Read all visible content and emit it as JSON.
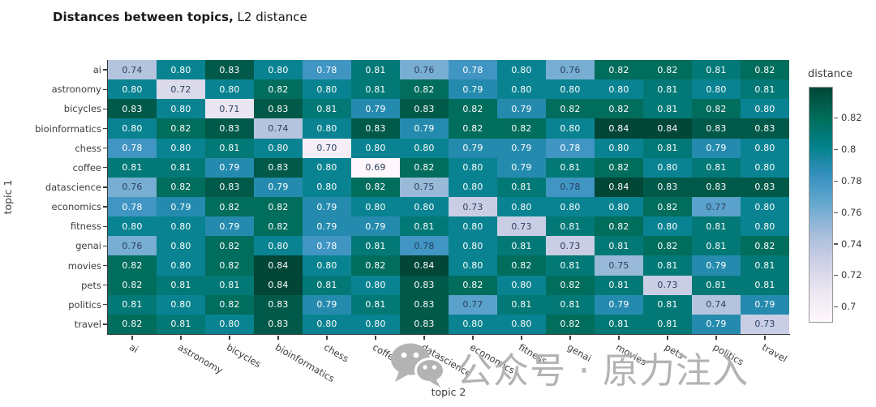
{
  "header": {
    "title_bold": "Distances between topics,",
    "title_regular": " L2 distance"
  },
  "axes": {
    "x_title": "topic 2",
    "y_title": "topic 1"
  },
  "chart_data": {
    "type": "heatmap",
    "title": "Distances between topics, L2 distance",
    "xlabel": "topic 2",
    "ylabel": "topic 1",
    "categories": [
      "ai",
      "astronomy",
      "bicycles",
      "bioinformatics",
      "chess",
      "coffee",
      "datascience",
      "economics",
      "fitness",
      "genai",
      "movies",
      "pets",
      "politics",
      "travel"
    ],
    "matrix": [
      [
        0.74,
        0.8,
        0.83,
        0.8,
        0.78,
        0.81,
        0.76,
        0.78,
        0.8,
        0.76,
        0.82,
        0.82,
        0.81,
        0.82
      ],
      [
        0.8,
        0.72,
        0.8,
        0.82,
        0.8,
        0.81,
        0.82,
        0.79,
        0.8,
        0.8,
        0.8,
        0.81,
        0.8,
        0.81
      ],
      [
        0.83,
        0.8,
        0.71,
        0.83,
        0.81,
        0.79,
        0.83,
        0.82,
        0.79,
        0.82,
        0.82,
        0.81,
        0.82,
        0.8
      ],
      [
        0.8,
        0.82,
        0.83,
        0.74,
        0.8,
        0.83,
        0.79,
        0.82,
        0.82,
        0.8,
        0.84,
        0.84,
        0.83,
        0.83
      ],
      [
        0.78,
        0.8,
        0.81,
        0.8,
        0.7,
        0.8,
        0.8,
        0.79,
        0.79,
        0.78,
        0.8,
        0.81,
        0.79,
        0.8
      ],
      [
        0.81,
        0.81,
        0.79,
        0.83,
        0.8,
        0.69,
        0.82,
        0.8,
        0.79,
        0.81,
        0.82,
        0.8,
        0.81,
        0.8
      ],
      [
        0.76,
        0.82,
        0.83,
        0.79,
        0.8,
        0.82,
        0.75,
        0.8,
        0.81,
        0.78,
        0.84,
        0.83,
        0.83,
        0.83
      ],
      [
        0.78,
        0.79,
        0.82,
        0.82,
        0.79,
        0.8,
        0.8,
        0.73,
        0.8,
        0.8,
        0.8,
        0.82,
        0.77,
        0.8
      ],
      [
        0.8,
        0.8,
        0.79,
        0.82,
        0.79,
        0.79,
        0.81,
        0.8,
        0.73,
        0.81,
        0.82,
        0.8,
        0.81,
        0.8
      ],
      [
        0.76,
        0.8,
        0.82,
        0.8,
        0.78,
        0.81,
        0.78,
        0.8,
        0.81,
        0.73,
        0.81,
        0.82,
        0.81,
        0.82
      ],
      [
        0.82,
        0.8,
        0.82,
        0.84,
        0.8,
        0.82,
        0.84,
        0.8,
        0.82,
        0.81,
        0.75,
        0.81,
        0.79,
        0.81
      ],
      [
        0.82,
        0.81,
        0.81,
        0.84,
        0.81,
        0.8,
        0.83,
        0.82,
        0.8,
        0.82,
        0.81,
        0.73,
        0.81,
        0.81
      ],
      [
        0.81,
        0.8,
        0.82,
        0.83,
        0.79,
        0.81,
        0.83,
        0.77,
        0.81,
        0.81,
        0.79,
        0.81,
        0.74,
        0.79
      ],
      [
        0.82,
        0.81,
        0.8,
        0.83,
        0.8,
        0.8,
        0.83,
        0.8,
        0.8,
        0.82,
        0.81,
        0.81,
        0.79,
        0.73
      ]
    ],
    "value_decimals": 2,
    "colorscale": {
      "name": "PuBuGn",
      "vmin": 0.69,
      "vmax": 0.84,
      "stops": [
        [
          0.0,
          "#fff7fb"
        ],
        [
          0.125,
          "#ece7f2"
        ],
        [
          0.25,
          "#d0d1e6"
        ],
        [
          0.375,
          "#a6bddb"
        ],
        [
          0.5,
          "#67a9cf"
        ],
        [
          0.625,
          "#3690c0"
        ],
        [
          0.75,
          "#02818a"
        ],
        [
          0.875,
          "#016c59"
        ],
        [
          1.0,
          "#014636"
        ]
      ]
    },
    "dark_text_max": 0.76,
    "dark_text_overrides": [
      [
        6,
        9
      ],
      [
        9,
        6
      ],
      [
        7,
        12
      ],
      [
        12,
        7
      ]
    ],
    "colorbar": {
      "title": "distance",
      "tick_values": [
        0.82,
        0.8,
        0.78,
        0.76,
        0.74,
        0.72,
        0.7
      ],
      "tick_labels": [
        "0.82",
        "0.8",
        "0.78",
        "0.76",
        "0.74",
        "0.72",
        "0.7"
      ]
    },
    "legend_position": "right",
    "grid": false
  },
  "watermark": {
    "icon": "wechat-icon",
    "text": "公众号 · 原力注入"
  },
  "colors": {
    "title_text": "#1a1a1a",
    "axis_line": "#3c3c3c",
    "tick_label": "#3d3d3d",
    "cell_text_dark": "#2a3f5f",
    "cell_text_light": "#ffffff",
    "watermark": "#b3b3b3",
    "colorbar_border": "#999999"
  }
}
